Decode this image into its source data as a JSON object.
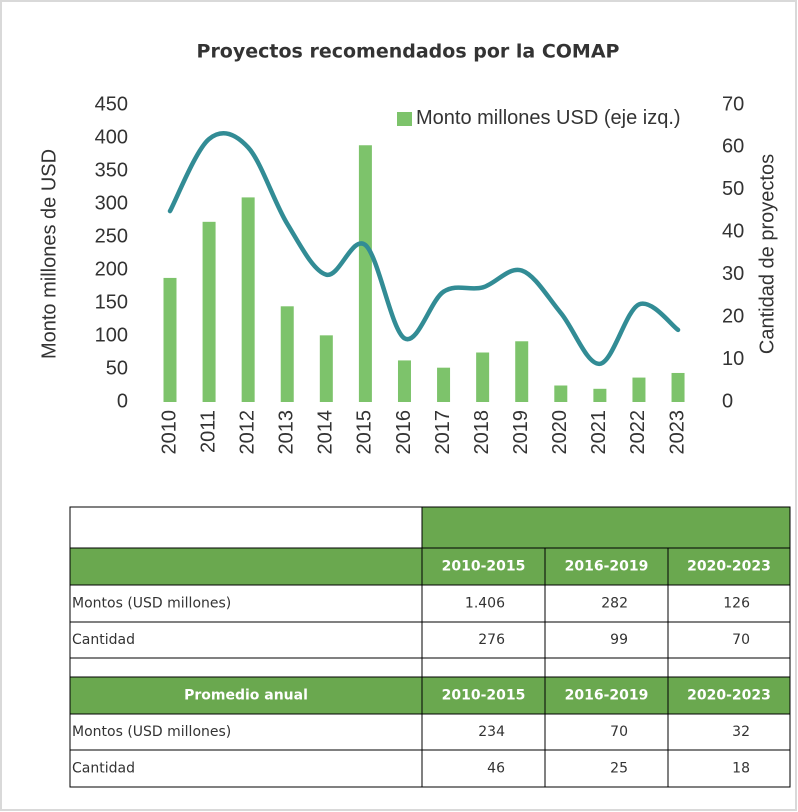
{
  "chart_data": {
    "type": "bar-line",
    "title": "Proyectos recomendados por la COMAP",
    "categories": [
      "2010",
      "2011",
      "2012",
      "2013",
      "2014",
      "2015",
      "2016",
      "2017",
      "2018",
      "2019",
      "2020",
      "2021",
      "2022",
      "2023"
    ],
    "series": [
      {
        "name": "Monto millones USD (eje izq.)",
        "type": "bar",
        "color": "#7dc36b",
        "values": [
          188,
          273,
          310,
          145,
          101,
          389,
          63,
          52,
          75,
          92,
          25,
          20,
          37,
          44
        ]
      },
      {
        "type": "line",
        "axis": "y2",
        "color": "#328c95",
        "smooth": true,
        "values": [
          45,
          62,
          60,
          42,
          30,
          37,
          15,
          26,
          27,
          31,
          21,
          9,
          23,
          17
        ]
      }
    ],
    "ylabel": "Monto millones de USD",
    "y2label": "Cantidad de proyectos",
    "ylim": [
      0,
      450
    ],
    "yticks": [
      0,
      50,
      100,
      150,
      200,
      250,
      300,
      350,
      400,
      450
    ],
    "y2lim": [
      0,
      70
    ],
    "y2ticks": [
      0,
      10,
      20,
      30,
      40,
      50,
      60,
      70
    ]
  },
  "table": {
    "headers": [
      "2010-2015",
      "2016-2019",
      "2020-2023"
    ],
    "rows": [
      [
        "Montos (USD millones)",
        "1.406",
        "282",
        "126"
      ],
      [
        "Cantidad",
        "276",
        "99",
        "70"
      ]
    ],
    "average": {
      "title": "Promedio anual",
      "headers": [
        "2010-2015",
        "2016-2019",
        "2020-2023"
      ],
      "rows": [
        [
          "Montos (USD millones)",
          "234",
          "70",
          "32"
        ],
        [
          "Cantidad",
          "46",
          "25",
          "18"
        ]
      ]
    }
  }
}
